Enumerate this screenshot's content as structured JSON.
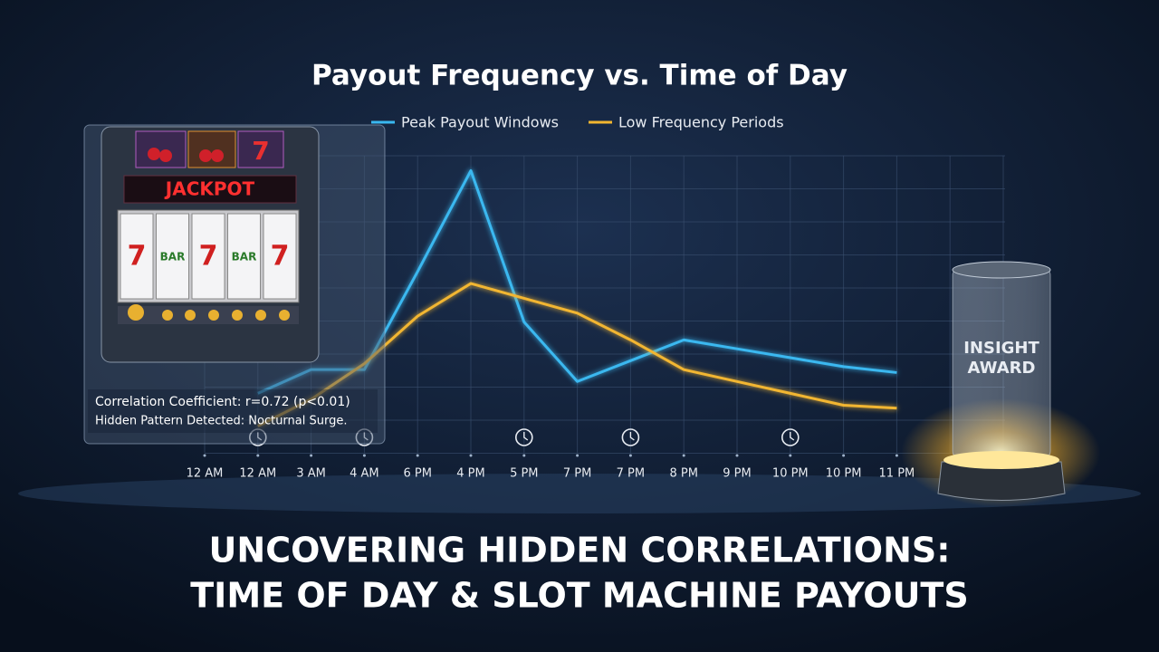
{
  "chart_data": {
    "type": "line",
    "title": "Payout Frequency vs. Time of Day",
    "categories": [
      "12 AM",
      "12 AM",
      "3 AM",
      "4 AM",
      "6 PM",
      "4 PM",
      "5 PM",
      "7 PM",
      "7 PM",
      "8 PM",
      "9 PM",
      "10 PM",
      "10 PM",
      "11 PM"
    ],
    "series": [
      {
        "name": "Peak Payout Windows",
        "color": "#3ab8f0",
        "values": [
          null,
          20,
          28,
          28,
          61,
          95,
          44,
          24,
          31,
          38,
          35,
          32,
          29,
          27
        ]
      },
      {
        "name": "Low Frequency Periods",
        "color": "#f2b630",
        "values": [
          null,
          9,
          18,
          30,
          46,
          57,
          52,
          47,
          38,
          28,
          24,
          20,
          16,
          15
        ]
      }
    ],
    "ylim": [
      0,
      100
    ],
    "grid": true,
    "legend": "top",
    "annotations": [
      "Correlation Coefficient: r=0.72 (p<0.01)",
      "Hidden Pattern Detected: Nocturnal Surge."
    ]
  },
  "slot_machine": {
    "label": "JACKPOT",
    "reels": [
      "7",
      "BAR",
      "7",
      "BAR",
      "7"
    ]
  },
  "award": {
    "line1": "INSIGHT",
    "line2": "AWARD"
  },
  "headline": {
    "line1": "UNCOVERING HIDDEN CORRELATIONS:",
    "line2": "TIME OF DAY & SLOT MACHINE PAYOUTS"
  }
}
